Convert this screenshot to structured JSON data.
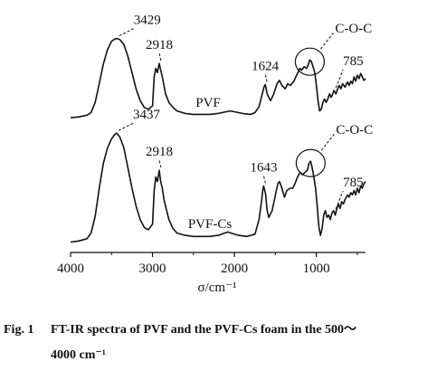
{
  "chart_data": {
    "type": "line",
    "xlabel": "σ/cm⁻¹",
    "xlim": [
      4000,
      400
    ],
    "xticks": [
      4000,
      3000,
      2000,
      1000
    ],
    "grid": false,
    "legend": "none",
    "series": [
      {
        "name": "PVF",
        "baseline": 0,
        "points": [
          [
            4000,
            0.02
          ],
          [
            3900,
            0.03
          ],
          [
            3800,
            0.05
          ],
          [
            3750,
            0.08
          ],
          [
            3700,
            0.2
          ],
          [
            3650,
            0.42
          ],
          [
            3600,
            0.65
          ],
          [
            3550,
            0.82
          ],
          [
            3500,
            0.92
          ],
          [
            3450,
            0.95
          ],
          [
            3429,
            0.95
          ],
          [
            3400,
            0.94
          ],
          [
            3350,
            0.88
          ],
          [
            3300,
            0.74
          ],
          [
            3250,
            0.55
          ],
          [
            3200,
            0.36
          ],
          [
            3150,
            0.22
          ],
          [
            3100,
            0.14
          ],
          [
            3050,
            0.12
          ],
          [
            3000,
            0.16
          ],
          [
            2980,
            0.5
          ],
          [
            2960,
            0.6
          ],
          [
            2940,
            0.55
          ],
          [
            2918,
            0.66
          ],
          [
            2900,
            0.58
          ],
          [
            2880,
            0.5
          ],
          [
            2860,
            0.4
          ],
          [
            2840,
            0.3
          ],
          [
            2800,
            0.2
          ],
          [
            2750,
            0.14
          ],
          [
            2700,
            0.1
          ],
          [
            2600,
            0.07
          ],
          [
            2500,
            0.06
          ],
          [
            2400,
            0.06
          ],
          [
            2300,
            0.06
          ],
          [
            2200,
            0.07
          ],
          [
            2100,
            0.09
          ],
          [
            2050,
            0.1
          ],
          [
            2000,
            0.09
          ],
          [
            1900,
            0.07
          ],
          [
            1800,
            0.06
          ],
          [
            1750,
            0.08
          ],
          [
            1700,
            0.15
          ],
          [
            1660,
            0.3
          ],
          [
            1640,
            0.38
          ],
          [
            1624,
            0.41
          ],
          [
            1600,
            0.3
          ],
          [
            1560,
            0.22
          ],
          [
            1520,
            0.3
          ],
          [
            1480,
            0.42
          ],
          [
            1450,
            0.46
          ],
          [
            1420,
            0.4
          ],
          [
            1380,
            0.36
          ],
          [
            1350,
            0.42
          ],
          [
            1320,
            0.4
          ],
          [
            1280,
            0.44
          ],
          [
            1250,
            0.5
          ],
          [
            1220,
            0.56
          ],
          [
            1200,
            0.6
          ],
          [
            1180,
            0.58
          ],
          [
            1150,
            0.62
          ],
          [
            1120,
            0.6
          ],
          [
            1100,
            0.64
          ],
          [
            1080,
            0.7
          ],
          [
            1060,
            0.68
          ],
          [
            1040,
            0.62
          ],
          [
            1020,
            0.55
          ],
          [
            1000,
            0.4
          ],
          [
            980,
            0.22
          ],
          [
            960,
            0.1
          ],
          [
            940,
            0.12
          ],
          [
            920,
            0.2
          ],
          [
            900,
            0.24
          ],
          [
            880,
            0.2
          ],
          [
            860,
            0.24
          ],
          [
            840,
            0.3
          ],
          [
            820,
            0.26
          ],
          [
            800,
            0.3
          ],
          [
            785,
            0.34
          ],
          [
            760,
            0.3
          ],
          [
            740,
            0.36
          ],
          [
            720,
            0.4
          ],
          [
            700,
            0.36
          ],
          [
            680,
            0.42
          ],
          [
            650,
            0.38
          ],
          [
            620,
            0.44
          ],
          [
            600,
            0.4
          ],
          [
            580,
            0.45
          ],
          [
            560,
            0.42
          ],
          [
            540,
            0.5
          ],
          [
            520,
            0.45
          ],
          [
            500,
            0.52
          ],
          [
            480,
            0.48
          ],
          [
            460,
            0.54
          ],
          [
            440,
            0.5
          ],
          [
            420,
            0.46
          ],
          [
            400,
            0.48
          ]
        ]
      },
      {
        "name": "PVF-Cs",
        "baseline": 1,
        "points": [
          [
            4000,
            0.02
          ],
          [
            3900,
            0.03
          ],
          [
            3800,
            0.05
          ],
          [
            3750,
            0.1
          ],
          [
            3700,
            0.25
          ],
          [
            3650,
            0.5
          ],
          [
            3600,
            0.72
          ],
          [
            3550,
            0.86
          ],
          [
            3500,
            0.94
          ],
          [
            3460,
            0.98
          ],
          [
            3437,
            0.99
          ],
          [
            3400,
            0.96
          ],
          [
            3350,
            0.86
          ],
          [
            3300,
            0.68
          ],
          [
            3250,
            0.5
          ],
          [
            3200,
            0.34
          ],
          [
            3150,
            0.22
          ],
          [
            3100,
            0.15
          ],
          [
            3050,
            0.13
          ],
          [
            3000,
            0.18
          ],
          [
            2980,
            0.48
          ],
          [
            2960,
            0.6
          ],
          [
            2940,
            0.56
          ],
          [
            2918,
            0.66
          ],
          [
            2900,
            0.56
          ],
          [
            2880,
            0.5
          ],
          [
            2860,
            0.4
          ],
          [
            2840,
            0.34
          ],
          [
            2800,
            0.22
          ],
          [
            2750,
            0.14
          ],
          [
            2700,
            0.1
          ],
          [
            2600,
            0.08
          ],
          [
            2500,
            0.07
          ],
          [
            2400,
            0.07
          ],
          [
            2300,
            0.07
          ],
          [
            2200,
            0.08
          ],
          [
            2120,
            0.1
          ],
          [
            2080,
            0.11
          ],
          [
            2040,
            0.1
          ],
          [
            1950,
            0.08
          ],
          [
            1850,
            0.07
          ],
          [
            1750,
            0.09
          ],
          [
            1700,
            0.22
          ],
          [
            1670,
            0.38
          ],
          [
            1655,
            0.48
          ],
          [
            1643,
            0.52
          ],
          [
            1620,
            0.45
          ],
          [
            1600,
            0.3
          ],
          [
            1580,
            0.24
          ],
          [
            1540,
            0.3
          ],
          [
            1500,
            0.44
          ],
          [
            1470,
            0.54
          ],
          [
            1450,
            0.56
          ],
          [
            1420,
            0.5
          ],
          [
            1390,
            0.42
          ],
          [
            1360,
            0.48
          ],
          [
            1320,
            0.5
          ],
          [
            1290,
            0.5
          ],
          [
            1260,
            0.54
          ],
          [
            1230,
            0.6
          ],
          [
            1200,
            0.64
          ],
          [
            1170,
            0.62
          ],
          [
            1140,
            0.64
          ],
          [
            1110,
            0.66
          ],
          [
            1090,
            0.72
          ],
          [
            1070,
            0.74
          ],
          [
            1050,
            0.68
          ],
          [
            1030,
            0.6
          ],
          [
            1010,
            0.5
          ],
          [
            990,
            0.34
          ],
          [
            970,
            0.16
          ],
          [
            950,
            0.08
          ],
          [
            930,
            0.14
          ],
          [
            910,
            0.26
          ],
          [
            890,
            0.3
          ],
          [
            870,
            0.24
          ],
          [
            850,
            0.26
          ],
          [
            830,
            0.22
          ],
          [
            810,
            0.28
          ],
          [
            790,
            0.3
          ],
          [
            770,
            0.26
          ],
          [
            750,
            0.32
          ],
          [
            730,
            0.36
          ],
          [
            710,
            0.32
          ],
          [
            690,
            0.38
          ],
          [
            670,
            0.36
          ],
          [
            650,
            0.4
          ],
          [
            620,
            0.44
          ],
          [
            600,
            0.42
          ],
          [
            580,
            0.46
          ],
          [
            560,
            0.44
          ],
          [
            540,
            0.48
          ],
          [
            520,
            0.44
          ],
          [
            500,
            0.5
          ],
          [
            480,
            0.46
          ],
          [
            460,
            0.52
          ],
          [
            440,
            0.5
          ],
          [
            420,
            0.54
          ],
          [
            400,
            0.56
          ]
        ]
      }
    ],
    "annotations": [
      {
        "text": "3429",
        "series": 0,
        "x": 3429
      },
      {
        "text": "2918",
        "series": 0,
        "x": 2918
      },
      {
        "text": "1624",
        "series": 0,
        "x": 1624
      },
      {
        "text": "C-O-C",
        "series": 0,
        "x": 1080,
        "circled": true
      },
      {
        "text": "785",
        "series": 0,
        "x": 785
      },
      {
        "text": "PVF",
        "series": 0,
        "label": true
      },
      {
        "text": "3437",
        "series": 1,
        "x": 3437
      },
      {
        "text": "2918",
        "series": 1,
        "x": 2918
      },
      {
        "text": "1643",
        "series": 1,
        "x": 1643
      },
      {
        "text": "C-O-C",
        "series": 1,
        "x": 1070,
        "circled": true
      },
      {
        "text": "785",
        "series": 1,
        "x": 785
      },
      {
        "text": "PVF-Cs",
        "series": 1,
        "label": true
      }
    ]
  },
  "caption": {
    "prefix": "Fig. 1",
    "line1": "FT-IR spectra of PVF and the PVF-Cs foam in the 500～",
    "line2": "4000 cm⁻¹"
  }
}
